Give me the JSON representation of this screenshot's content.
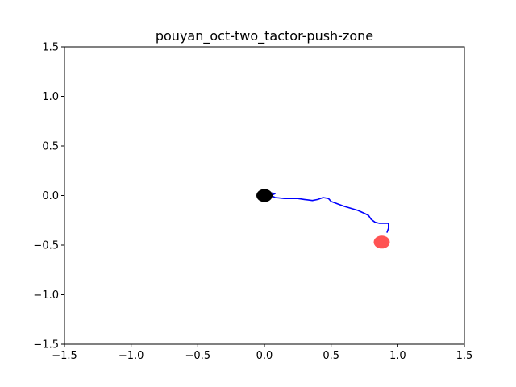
{
  "chart_data": {
    "type": "line",
    "title": "pouyan_oct-two_tactor-push-zone",
    "xlabel": "",
    "ylabel": "",
    "xlim": [
      -1.5,
      1.5
    ],
    "ylim": [
      -1.5,
      1.5
    ],
    "x_ticks": [
      "−1.5",
      "−1.0",
      "−0.5",
      "0.0",
      "0.5",
      "1.0",
      "1.5"
    ],
    "y_ticks": [
      "1.5",
      "1.0",
      "0.5",
      "0.0",
      "−0.5",
      "−1.0",
      "−1.5"
    ],
    "grid": false,
    "legend": "none",
    "series": [
      {
        "color": "#0000ff",
        "x": [
          0.0,
          0.03,
          0.08,
          0.05,
          0.08,
          0.15,
          0.25,
          0.3,
          0.36,
          0.4,
          0.44,
          0.48,
          0.5,
          0.6,
          0.7,
          0.75,
          0.78,
          0.8,
          0.83,
          0.86,
          0.9,
          0.93,
          0.93,
          0.92
        ],
        "y": [
          0.03,
          0.03,
          0.02,
          0.0,
          -0.02,
          -0.03,
          -0.03,
          -0.04,
          -0.05,
          -0.04,
          -0.02,
          -0.03,
          -0.06,
          -0.11,
          -0.15,
          -0.18,
          -0.2,
          -0.24,
          -0.27,
          -0.28,
          -0.28,
          -0.28,
          -0.33,
          -0.37
        ]
      }
    ],
    "markers": [
      {
        "x": 0.0,
        "y": 0.0,
        "color": "#000000"
      },
      {
        "x": 0.88,
        "y": -0.47,
        "color": "#ff4040"
      }
    ]
  }
}
